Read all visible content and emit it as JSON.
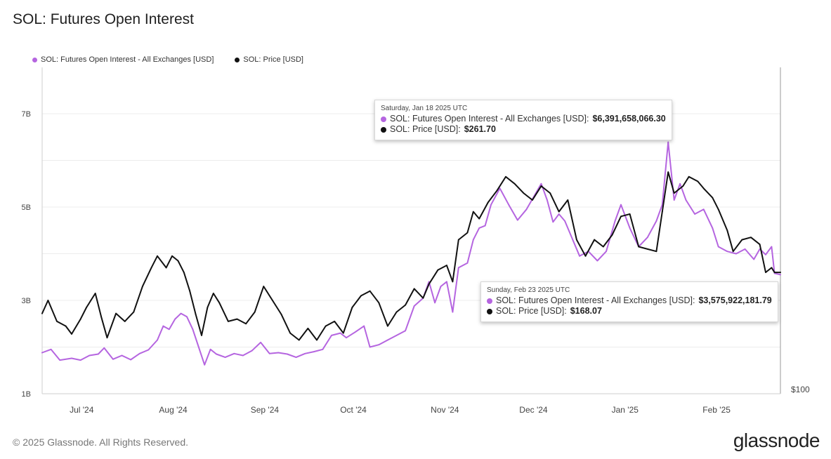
{
  "title": "SOL: Futures Open Interest",
  "legend": {
    "oi_label": "SOL: Futures Open Interest - All Exchanges [USD]",
    "price_label": "SOL: Price [USD]"
  },
  "colors": {
    "oi": "#b565e0",
    "price": "#111111",
    "grid": "#ececec",
    "axis": "#cfcfcf"
  },
  "tooltip1": {
    "date": "Saturday, Jan 18 2025 UTC",
    "oi_label": "SOL: Futures Open Interest - All Exchanges [USD]:",
    "oi_value": "$6,391,658,066.30",
    "price_label": "SOL: Price [USD]:",
    "price_value": "$261.70"
  },
  "tooltip2": {
    "date": "Sunday, Feb 23 2025 UTC",
    "oi_label": "SOL: Futures Open Interest - All Exchanges [USD]:",
    "oi_value": "$3,575,922,181.79",
    "price_label": "SOL: Price [USD]:",
    "price_value": "$168.07"
  },
  "footer": "© 2025 Glassnode. All Rights Reserved.",
  "brand": "glassnode",
  "chart_data": {
    "type": "line",
    "title": "SOL: Futures Open Interest",
    "x_ticks": [
      "Jul '24",
      "Aug '24",
      "Sep '24",
      "Oct '24",
      "Nov '24",
      "Dec '24",
      "Jan '25",
      "Feb '25"
    ],
    "y_left": {
      "ticks": [
        "1B",
        "3B",
        "5B",
        "7B"
      ],
      "tick_values": [
        1,
        3,
        5,
        7
      ],
      "range": [
        1,
        8
      ]
    },
    "y_right": {
      "ticks": [
        "$100"
      ]
    },
    "grid": true,
    "legend_position": "top-left",
    "series": [
      {
        "name": "SOL: Futures Open Interest - All Exchanges [USD]",
        "color": "#b565e0",
        "points": [
          [
            "2024-06-20",
            1.88
          ],
          [
            "2024-06-23",
            1.95
          ],
          [
            "2024-06-26",
            1.72
          ],
          [
            "2024-06-30",
            1.76
          ],
          [
            "2024-07-03",
            1.72
          ],
          [
            "2024-07-06",
            1.82
          ],
          [
            "2024-07-09",
            1.85
          ],
          [
            "2024-07-11",
            1.98
          ],
          [
            "2024-07-14",
            1.74
          ],
          [
            "2024-07-17",
            1.82
          ],
          [
            "2024-07-20",
            1.73
          ],
          [
            "2024-07-23",
            1.86
          ],
          [
            "2024-07-26",
            1.94
          ],
          [
            "2024-07-29",
            2.15
          ],
          [
            "2024-07-31",
            2.45
          ],
          [
            "2024-08-02",
            2.38
          ],
          [
            "2024-08-04",
            2.6
          ],
          [
            "2024-08-06",
            2.72
          ],
          [
            "2024-08-08",
            2.65
          ],
          [
            "2024-08-10",
            2.38
          ],
          [
            "2024-08-12",
            2.0
          ],
          [
            "2024-08-14",
            1.62
          ],
          [
            "2024-08-16",
            1.95
          ],
          [
            "2024-08-18",
            1.85
          ],
          [
            "2024-08-21",
            1.78
          ],
          [
            "2024-08-24",
            1.86
          ],
          [
            "2024-08-27",
            1.82
          ],
          [
            "2024-08-30",
            1.92
          ],
          [
            "2024-09-02",
            2.1
          ],
          [
            "2024-09-05",
            1.86
          ],
          [
            "2024-09-08",
            1.88
          ],
          [
            "2024-09-11",
            1.85
          ],
          [
            "2024-09-14",
            1.78
          ],
          [
            "2024-09-17",
            1.86
          ],
          [
            "2024-09-20",
            1.9
          ],
          [
            "2024-09-23",
            1.95
          ],
          [
            "2024-09-26",
            2.25
          ],
          [
            "2024-09-29",
            2.3
          ],
          [
            "2024-10-01",
            2.2
          ],
          [
            "2024-10-04",
            2.32
          ],
          [
            "2024-10-07",
            2.45
          ],
          [
            "2024-10-09",
            2.0
          ],
          [
            "2024-10-12",
            2.05
          ],
          [
            "2024-10-15",
            2.15
          ],
          [
            "2024-10-18",
            2.25
          ],
          [
            "2024-10-21",
            2.35
          ],
          [
            "2024-10-24",
            2.88
          ],
          [
            "2024-10-27",
            3.05
          ],
          [
            "2024-10-29",
            3.4
          ],
          [
            "2024-10-31",
            2.95
          ],
          [
            "2024-11-02",
            3.3
          ],
          [
            "2024-11-04",
            3.4
          ],
          [
            "2024-11-06",
            2.75
          ],
          [
            "2024-11-08",
            3.7
          ],
          [
            "2024-11-11",
            3.8
          ],
          [
            "2024-11-13",
            4.3
          ],
          [
            "2024-11-15",
            4.55
          ],
          [
            "2024-11-17",
            4.6
          ],
          [
            "2024-11-19",
            5.05
          ],
          [
            "2024-11-22",
            5.4
          ],
          [
            "2024-11-25",
            5.05
          ],
          [
            "2024-11-28",
            4.72
          ],
          [
            "2024-12-01",
            4.95
          ],
          [
            "2024-12-04",
            5.28
          ],
          [
            "2024-12-06",
            5.5
          ],
          [
            "2024-12-08",
            5.15
          ],
          [
            "2024-12-10",
            4.68
          ],
          [
            "2024-12-12",
            4.85
          ],
          [
            "2024-12-14",
            4.7
          ],
          [
            "2024-12-16",
            4.4
          ],
          [
            "2024-12-19",
            3.95
          ],
          [
            "2024-12-22",
            4.05
          ],
          [
            "2024-12-25",
            3.85
          ],
          [
            "2024-12-28",
            4.05
          ],
          [
            "2024-12-31",
            4.7
          ],
          [
            "2025-01-02",
            5.05
          ],
          [
            "2025-01-05",
            4.55
          ],
          [
            "2025-01-08",
            4.15
          ],
          [
            "2025-01-11",
            4.35
          ],
          [
            "2025-01-14",
            4.7
          ],
          [
            "2025-01-16",
            5.05
          ],
          [
            "2025-01-18",
            6.39
          ],
          [
            "2025-01-20",
            5.15
          ],
          [
            "2025-01-22",
            5.5
          ],
          [
            "2025-01-24",
            5.15
          ],
          [
            "2025-01-27",
            4.85
          ],
          [
            "2025-01-30",
            4.95
          ],
          [
            "2025-02-02",
            4.55
          ],
          [
            "2025-02-04",
            4.15
          ],
          [
            "2025-02-07",
            4.05
          ],
          [
            "2025-02-10",
            4.0
          ],
          [
            "2025-02-13",
            4.1
          ],
          [
            "2025-02-16",
            3.88
          ],
          [
            "2025-02-18",
            4.1
          ],
          [
            "2025-02-20",
            3.98
          ],
          [
            "2025-02-22",
            4.15
          ],
          [
            "2025-02-23",
            3.58
          ],
          [
            "2025-02-25",
            3.55
          ]
        ]
      },
      {
        "name": "SOL: Price [USD]",
        "color": "#111111",
        "points": [
          [
            "2024-06-20",
            2.72
          ],
          [
            "2024-06-22",
            3.0
          ],
          [
            "2024-06-25",
            2.55
          ],
          [
            "2024-06-28",
            2.45
          ],
          [
            "2024-06-30",
            2.28
          ],
          [
            "2024-07-03",
            2.6
          ],
          [
            "2024-07-05",
            2.85
          ],
          [
            "2024-07-08",
            3.15
          ],
          [
            "2024-07-10",
            2.65
          ],
          [
            "2024-07-12",
            2.2
          ],
          [
            "2024-07-15",
            2.72
          ],
          [
            "2024-07-18",
            2.55
          ],
          [
            "2024-07-21",
            2.75
          ],
          [
            "2024-07-24",
            3.3
          ],
          [
            "2024-07-27",
            3.7
          ],
          [
            "2024-07-29",
            3.95
          ],
          [
            "2024-08-01",
            3.7
          ],
          [
            "2024-08-03",
            3.95
          ],
          [
            "2024-08-05",
            3.85
          ],
          [
            "2024-08-07",
            3.6
          ],
          [
            "2024-08-09",
            3.2
          ],
          [
            "2024-08-11",
            2.7
          ],
          [
            "2024-08-13",
            2.25
          ],
          [
            "2024-08-15",
            2.85
          ],
          [
            "2024-08-17",
            3.15
          ],
          [
            "2024-08-19",
            2.95
          ],
          [
            "2024-08-22",
            2.55
          ],
          [
            "2024-08-25",
            2.6
          ],
          [
            "2024-08-28",
            2.5
          ],
          [
            "2024-08-31",
            2.75
          ],
          [
            "2024-09-03",
            3.3
          ],
          [
            "2024-09-06",
            3.0
          ],
          [
            "2024-09-09",
            2.7
          ],
          [
            "2024-09-12",
            2.3
          ],
          [
            "2024-09-15",
            2.15
          ],
          [
            "2024-09-18",
            2.4
          ],
          [
            "2024-09-21",
            2.15
          ],
          [
            "2024-09-24",
            2.45
          ],
          [
            "2024-09-27",
            2.55
          ],
          [
            "2024-09-30",
            2.3
          ],
          [
            "2024-10-03",
            2.85
          ],
          [
            "2024-10-06",
            3.1
          ],
          [
            "2024-10-09",
            3.2
          ],
          [
            "2024-10-12",
            2.95
          ],
          [
            "2024-10-15",
            2.45
          ],
          [
            "2024-10-18",
            2.75
          ],
          [
            "2024-10-21",
            2.9
          ],
          [
            "2024-10-24",
            3.25
          ],
          [
            "2024-10-27",
            3.05
          ],
          [
            "2024-10-29",
            3.35
          ],
          [
            "2024-11-01",
            3.65
          ],
          [
            "2024-11-04",
            3.75
          ],
          [
            "2024-11-06",
            3.4
          ],
          [
            "2024-11-08",
            4.3
          ],
          [
            "2024-11-11",
            4.45
          ],
          [
            "2024-11-13",
            4.9
          ],
          [
            "2024-11-15",
            4.75
          ],
          [
            "2024-11-18",
            5.1
          ],
          [
            "2024-11-21",
            5.35
          ],
          [
            "2024-11-24",
            5.65
          ],
          [
            "2024-11-27",
            5.5
          ],
          [
            "2024-11-30",
            5.3
          ],
          [
            "2024-12-03",
            5.15
          ],
          [
            "2024-12-06",
            5.45
          ],
          [
            "2024-12-09",
            5.3
          ],
          [
            "2024-12-12",
            4.9
          ],
          [
            "2024-12-15",
            5.15
          ],
          [
            "2024-12-18",
            4.3
          ],
          [
            "2024-12-21",
            3.95
          ],
          [
            "2024-12-24",
            4.3
          ],
          [
            "2024-12-27",
            4.15
          ],
          [
            "2024-12-30",
            4.4
          ],
          [
            "2025-01-02",
            4.8
          ],
          [
            "2025-01-05",
            4.85
          ],
          [
            "2025-01-08",
            4.15
          ],
          [
            "2025-01-11",
            4.1
          ],
          [
            "2025-01-14",
            4.05
          ],
          [
            "2025-01-16",
            4.9
          ],
          [
            "2025-01-18",
            5.75
          ],
          [
            "2025-01-20",
            5.3
          ],
          [
            "2025-01-23",
            5.45
          ],
          [
            "2025-01-25",
            5.65
          ],
          [
            "2025-01-28",
            5.55
          ],
          [
            "2025-01-30",
            5.4
          ],
          [
            "2025-02-02",
            5.2
          ],
          [
            "2025-02-04",
            4.95
          ],
          [
            "2025-02-07",
            4.5
          ],
          [
            "2025-02-09",
            4.05
          ],
          [
            "2025-02-12",
            4.3
          ],
          [
            "2025-02-15",
            4.35
          ],
          [
            "2025-02-18",
            4.2
          ],
          [
            "2025-02-20",
            3.6
          ],
          [
            "2025-02-22",
            3.7
          ],
          [
            "2025-02-23",
            3.6
          ],
          [
            "2025-02-25",
            3.6
          ]
        ]
      }
    ]
  }
}
